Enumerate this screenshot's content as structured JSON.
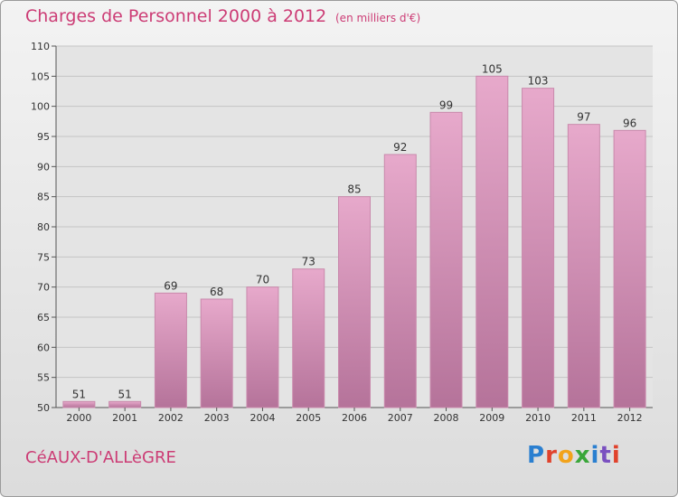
{
  "header": {
    "title": "Charges de Personnel 2000 à 2012",
    "subtitle": "(en milliers d'€)"
  },
  "footer": {
    "place": "CéAUX-D'ALLèGRE",
    "brand": "Proxiti"
  },
  "colors": {
    "title": "#cc3c75",
    "bar_light": "#e7a9cb",
    "bar_dark": "#b5739a"
  },
  "chart_data": {
    "type": "bar",
    "title": "Charges de Personnel 2000 à 2012",
    "subtitle": "(en milliers d'€)",
    "categories": [
      "2000",
      "2001",
      "2002",
      "2003",
      "2004",
      "2005",
      "2006",
      "2007",
      "2008",
      "2009",
      "2010",
      "2011",
      "2012"
    ],
    "values": [
      51,
      51,
      69,
      68,
      70,
      73,
      85,
      92,
      99,
      105,
      103,
      97,
      96
    ],
    "ylim": [
      50,
      110
    ],
    "yticks": [
      50,
      55,
      60,
      65,
      70,
      75,
      80,
      85,
      90,
      95,
      100,
      105,
      110
    ],
    "grid": true
  }
}
